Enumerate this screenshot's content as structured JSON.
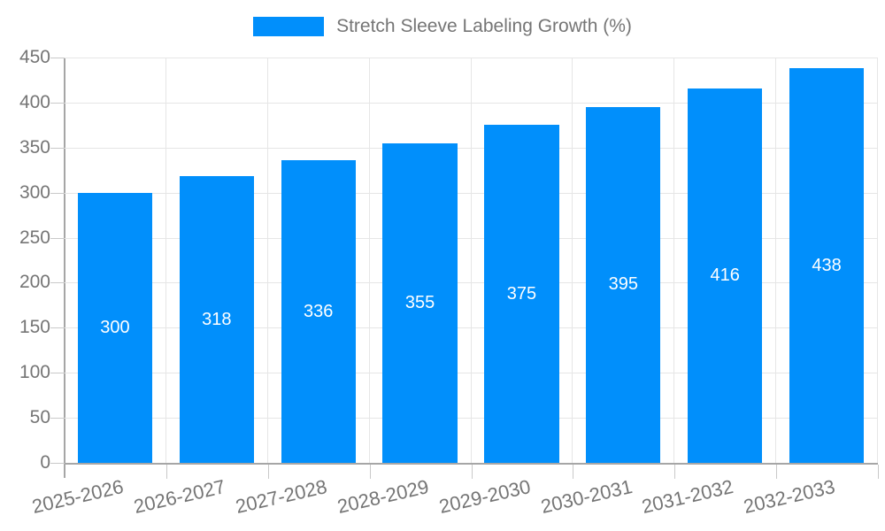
{
  "legend": {
    "label": "Stretch Sleeve Labeling Growth (%)"
  },
  "chart_data": {
    "type": "bar",
    "title": "Stretch Sleeve Labeling Growth (%)",
    "categories": [
      "2025-2026",
      "2026-2027",
      "2027-2028",
      "2028-2029",
      "2029-2030",
      "2030-2031",
      "2031-2032",
      "2032-2033"
    ],
    "values": [
      300,
      318,
      336,
      355,
      375,
      395,
      416,
      438
    ],
    "xlabel": "",
    "ylabel": "",
    "ylim": [
      0,
      450
    ],
    "yticks": [
      0,
      50,
      100,
      150,
      200,
      250,
      300,
      350,
      400,
      450
    ],
    "grid": "both",
    "legend_position": "top",
    "bar_value_labels": "inside-center"
  },
  "colors": {
    "bar": "#018FFB",
    "bar_label": "#ffffff",
    "grid": "#e6e6e6",
    "axis": "#a6a6a6",
    "tick": "#c9c9c9",
    "text": "#757575",
    "background": "#ffffff"
  }
}
